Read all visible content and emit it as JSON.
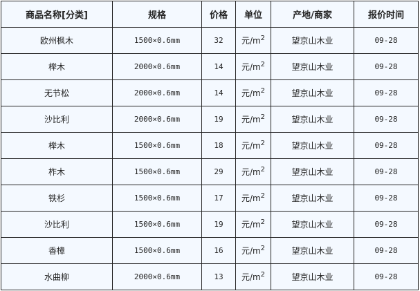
{
  "headers": [
    "商品名称[分类]",
    "规格",
    "价格",
    "单位",
    "产地/商家",
    "报价时间"
  ],
  "rows": [
    {
      "name": "欧州枫木",
      "spec": "1500×0.6mm",
      "price": "32",
      "unit": "元/m",
      "unit_exp": "2",
      "origin": "望京山木业",
      "date": "09-28"
    },
    {
      "name": "榉木",
      "spec": "2000×0.6mm",
      "price": "14",
      "unit": "元/m",
      "unit_exp": "2",
      "origin": "望京山木业",
      "date": "09-28"
    },
    {
      "name": "无节松",
      "spec": "2000×0.6mm",
      "price": "14",
      "unit": "元/m",
      "unit_exp": "2",
      "origin": "望京山木业",
      "date": "09-28"
    },
    {
      "name": "沙比利",
      "spec": "2000×0.6mm",
      "price": "19",
      "unit": "元/m",
      "unit_exp": "2",
      "origin": "望京山木业",
      "date": "09-28"
    },
    {
      "name": "榉木",
      "spec": "1500×0.6mm",
      "price": "18",
      "unit": "元/m",
      "unit_exp": "2",
      "origin": "望京山木业",
      "date": "09-28"
    },
    {
      "name": "柞木",
      "spec": "1500×0.6mm",
      "price": "29",
      "unit": "元/m",
      "unit_exp": "2",
      "origin": "望京山木业",
      "date": "09-28"
    },
    {
      "name": "铁杉",
      "spec": "1500×0.6mm",
      "price": "17",
      "unit": "元/m",
      "unit_exp": "2",
      "origin": "望京山木业",
      "date": "09-28"
    },
    {
      "name": "沙比利",
      "spec": "1500×0.6mm",
      "price": "19",
      "unit": "元/m",
      "unit_exp": "2",
      "origin": "望京山木业",
      "date": "09-28"
    },
    {
      "name": "香樟",
      "spec": "1500×0.6mm",
      "price": "16",
      "unit": "元/m",
      "unit_exp": "2",
      "origin": "望京山木业",
      "date": "09-28"
    },
    {
      "name": "水曲柳",
      "spec": "2000×0.6mm",
      "price": "13",
      "unit": "元/m",
      "unit_exp": "2",
      "origin": "望京山木业",
      "date": "09-28"
    }
  ]
}
